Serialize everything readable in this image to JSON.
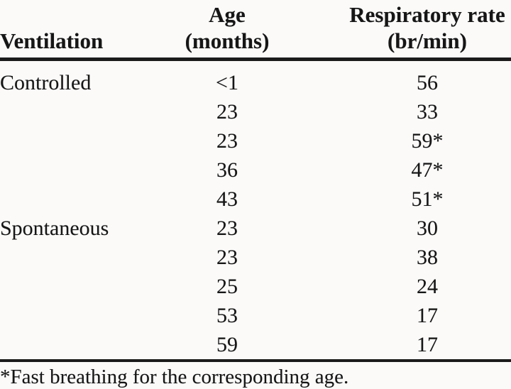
{
  "table": {
    "header": {
      "col1": "Ventilation",
      "col2_line1": "Age",
      "col2_line2": "(months)",
      "col3_line1": "Respiratory rate",
      "col3_line2": "(br/min)"
    },
    "rows": [
      {
        "group": "Controlled",
        "age": "<1",
        "rate": "56"
      },
      {
        "group": "",
        "age": "23",
        "rate": "33"
      },
      {
        "group": "",
        "age": "23",
        "rate": "59*"
      },
      {
        "group": "",
        "age": "36",
        "rate": "47*"
      },
      {
        "group": "",
        "age": "43",
        "rate": "51*"
      },
      {
        "group": "Spontaneous",
        "age": "23",
        "rate": "30"
      },
      {
        "group": "",
        "age": "23",
        "rate": "38"
      },
      {
        "group": "",
        "age": "25",
        "rate": "24"
      },
      {
        "group": "",
        "age": "53",
        "rate": "17"
      },
      {
        "group": "",
        "age": "59",
        "rate": "17"
      }
    ],
    "footnote": "*Fast breathing for the corresponding age."
  },
  "colors": {
    "text": "#161616",
    "background": "#fbfaf9",
    "rule": "#1b1b1b"
  }
}
